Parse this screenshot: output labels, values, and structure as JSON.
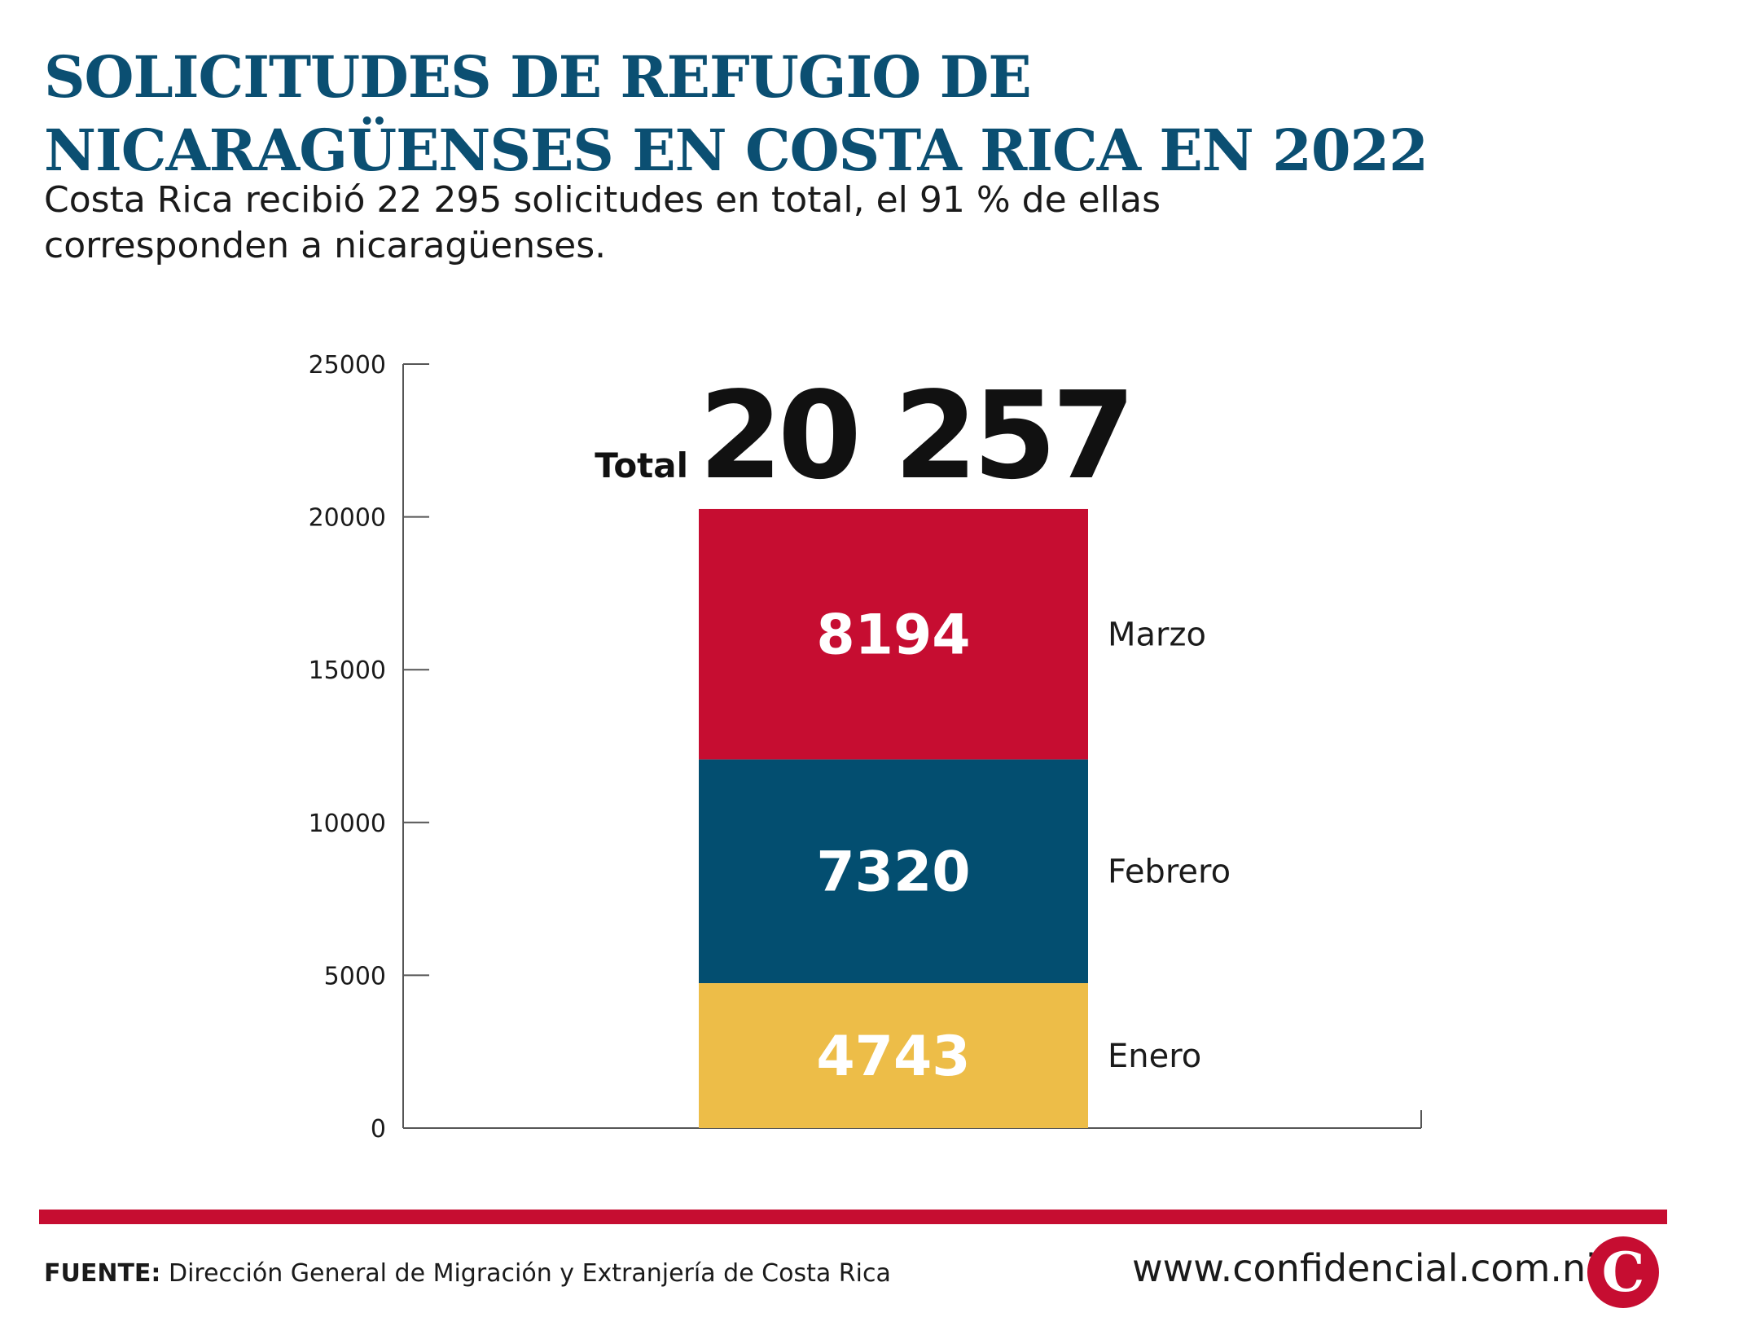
{
  "header": {
    "title_line1": "SOLICITUDES DE REFUGIO DE",
    "title_line2": "NICARAGÜENSES EN COSTA RICA EN 2022",
    "subtitle_line1": "Costa Rica recibió 22 295 solicitudes en total, el 91 % de ellas",
    "subtitle_line2": "corresponden a nicaragüenses."
  },
  "chart_data": {
    "type": "bar",
    "stacked": true,
    "ylim": [
      0,
      25000
    ],
    "yticks": [
      "0",
      "5000",
      "10000",
      "15000",
      "20000",
      "25000"
    ],
    "total_label": "Total",
    "total_value": "20 257",
    "series": [
      {
        "name": "Enero",
        "value": 4743,
        "label": "4743",
        "color": "#edbd48"
      },
      {
        "name": "Febrero",
        "value": 7320,
        "label": "7320",
        "color": "#034e70"
      },
      {
        "name": "Marzo",
        "value": 8194,
        "label": "8194",
        "color": "#c60d31"
      }
    ]
  },
  "footer": {
    "source_label": "FUENTE:",
    "source_text": "Dirección General de Migración y Extranjería de Costa Rica",
    "website": "www.confidencial.com.ni",
    "logo_letter": "C"
  },
  "colors": {
    "title": "#0b4f72",
    "accent": "#c60d31"
  }
}
